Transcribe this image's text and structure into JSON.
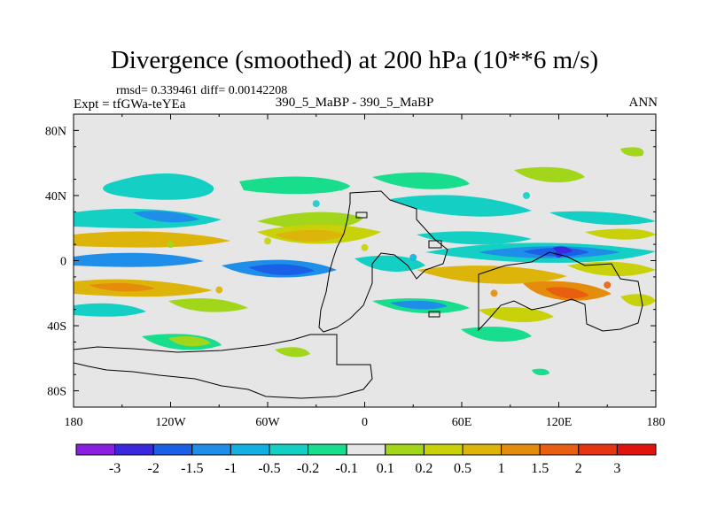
{
  "chart_data": {
    "type": "heatmap",
    "title": "Divergence (smoothed) at 200 hPa (10**6 m/s)",
    "stats": "rmsd= 0.339461 diff= 0.00142208",
    "left_label": "Expt = tfGWa-teYEa",
    "center_label": "390_5_MaBP - 390_5_MaBP",
    "right_label": "ANN",
    "x_ticks": [
      "180",
      "120W",
      "60W",
      "0",
      "60E",
      "120E",
      "180"
    ],
    "y_ticks": [
      "80N",
      "40N",
      "0",
      "40S",
      "80S"
    ],
    "x_range": [
      -180,
      180
    ],
    "y_range": [
      -90,
      90
    ],
    "colorbar": {
      "labels": [
        "-3",
        "-2",
        "-1.5",
        "-1",
        "-0.5",
        "-0.2",
        "-0.1",
        "0.1",
        "0.2",
        "0.5",
        "1",
        "1.5",
        "2",
        "3"
      ],
      "colors": [
        "#8a1fe0",
        "#3a28df",
        "#1a5fe6",
        "#1e8ee9",
        "#12b1e2",
        "#13cfc4",
        "#17dd8c",
        "#e6e6e6",
        "#a2d61a",
        "#c8d10a",
        "#dcb40a",
        "#e58c0d",
        "#e8600f",
        "#e63512",
        "#e0140e"
      ]
    },
    "features": [
      {
        "lon": -120,
        "lat": 10,
        "level": 8
      },
      {
        "lon": -60,
        "lat": 12,
        "level": 9
      },
      {
        "lon": 0,
        "lat": 8,
        "level": 9
      },
      {
        "lon": 30,
        "lat": 2,
        "level": 4
      },
      {
        "lon": 120,
        "lat": 4,
        "level": 1
      },
      {
        "lon": -90,
        "lat": -18,
        "level": 10
      },
      {
        "lon": 80,
        "lat": -20,
        "level": 11
      },
      {
        "lon": 150,
        "lat": -15,
        "level": 12
      },
      {
        "lon": -30,
        "lat": 35,
        "level": 5
      },
      {
        "lon": 100,
        "lat": 40,
        "level": 5
      }
    ]
  }
}
